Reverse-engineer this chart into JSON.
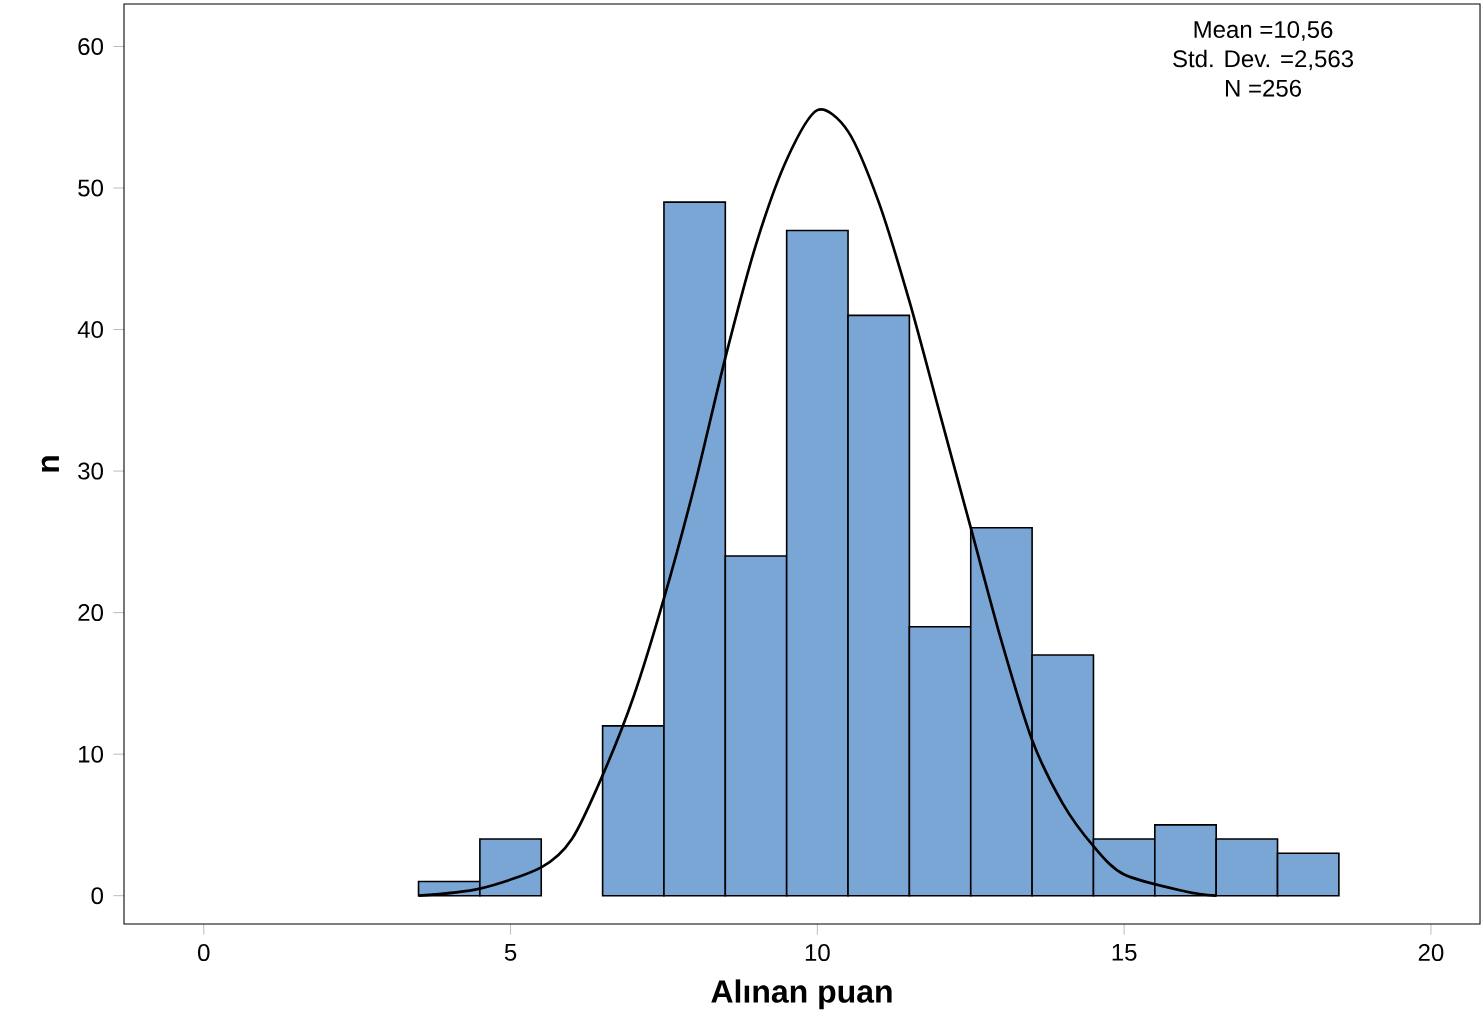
{
  "chart_data": {
    "type": "histogram",
    "xlabel": "Alınan puan",
    "ylabel": "n",
    "bins": [
      3.5,
      4.5,
      5.5,
      6.5,
      7.5,
      8.5,
      9.5,
      10.5,
      11.5,
      12.5,
      13.5,
      14.5,
      15.5,
      16.5,
      17.5,
      18.5
    ],
    "values": [
      1,
      4,
      0,
      12,
      49,
      24,
      47,
      41,
      19,
      26,
      17,
      4,
      5,
      4,
      3
    ],
    "color": "#7aa6d6",
    "series": [
      {
        "type": "line",
        "color": "#000000",
        "x": [
          3.5,
          4.5,
          5.5,
          6,
          6.5,
          7,
          7.5,
          8,
          8.5,
          9,
          9.5,
          10,
          10.5,
          11,
          11.5,
          12,
          12.5,
          13,
          13.5,
          14,
          14.5,
          15,
          16,
          16.5
        ],
        "values": [
          0,
          0.5,
          2,
          4,
          8.5,
          14,
          21,
          29,
          38,
          46,
          52,
          55.5,
          54,
          49,
          42,
          34,
          26,
          18,
          11,
          6.5,
          3.5,
          1.5,
          0.3,
          0
        ]
      }
    ],
    "xlim": [
      -1.3,
      20.8
    ],
    "ylim": [
      -2,
      63
    ],
    "xticks": [
      0,
      5,
      10,
      15,
      20
    ],
    "yticks": [
      0,
      10,
      20,
      30,
      40,
      50,
      60
    ],
    "annotations": [
      "Mean =10,56",
      "Std. Dev. =2,563",
      "N =256"
    ]
  }
}
